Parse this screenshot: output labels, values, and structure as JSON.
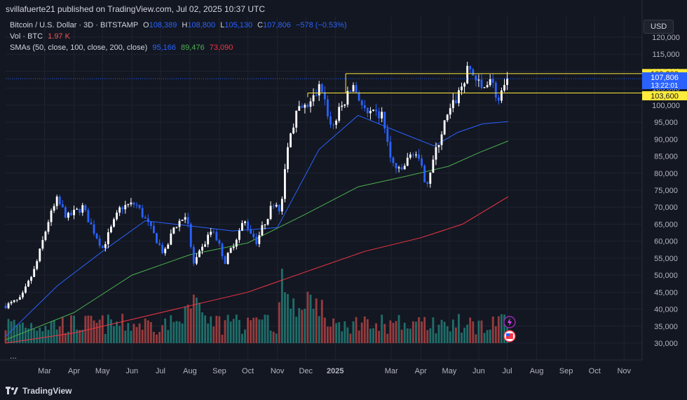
{
  "header": {
    "published": "svillafuerte21 published on TradingView.com, Jul 02, 2025 10:37 UTC"
  },
  "legend": {
    "symbol": "Bitcoin / U.S. Dollar · 3D · BITSTAMP",
    "o_label": "O",
    "o": "108,389",
    "h_label": "H",
    "h": "108,800",
    "l_label": "L",
    "l": "105,130",
    "c_label": "C",
    "c": "107,806",
    "change": "−578 (−0.53%)",
    "vol_label": "Vol · BTC",
    "vol": "1.97 K",
    "sma_label": "SMAs (50, close, 100, close, 200, close)",
    "sma1": "95,166",
    "sma2": "89,476",
    "sma3": "73,090"
  },
  "currency_button": "USD",
  "more_button": "...",
  "footer": {
    "brand": "TradingView"
  },
  "colors": {
    "up": "#ffffff",
    "down": "#2962ff",
    "vol_up": "#26a69a",
    "vol_down": "#ef5350",
    "sma50": "#2962ff",
    "sma100": "#4caf50",
    "sma200": "#f23645",
    "level": "#ffeb3b",
    "price": "#2962ff"
  },
  "chart_data": {
    "type": "candlestick",
    "title": "Bitcoin / U.S. Dollar · 3D · BITSTAMP",
    "ylim": [
      30000,
      125000
    ],
    "y_ticks": [
      30000,
      35000,
      40000,
      45000,
      50000,
      55000,
      60000,
      65000,
      70000,
      75000,
      80000,
      85000,
      90000,
      95000,
      100000,
      105000,
      110000,
      115000,
      120000
    ],
    "y_tick_labels": [
      "30,000",
      "35,000",
      "40,000",
      "45,000",
      "50,000",
      "55,000",
      "60,000",
      "65,000",
      "70,000",
      "75,000",
      "80,000",
      "85,000",
      "90,000",
      "95,000",
      "100,000",
      "105,000",
      "110,000",
      "115,000",
      "120,000"
    ],
    "x_ticks": [
      {
        "label": "Mar",
        "date": "2024-03-01"
      },
      {
        "label": "Apr",
        "date": "2024-04-01"
      },
      {
        "label": "May",
        "date": "2024-05-01"
      },
      {
        "label": "Jun",
        "date": "2024-06-01"
      },
      {
        "label": "Jul",
        "date": "2024-07-01"
      },
      {
        "label": "Aug",
        "date": "2024-08-01"
      },
      {
        "label": "Sep",
        "date": "2024-09-01"
      },
      {
        "label": "Oct",
        "date": "2024-10-01"
      },
      {
        "label": "Nov",
        "date": "2024-11-01"
      },
      {
        "label": "Dec",
        "date": "2024-12-01"
      },
      {
        "label": "2025",
        "date": "2025-01-01"
      },
      {
        "label": "Mar",
        "date": "2025-03-01"
      },
      {
        "label": "Apr",
        "date": "2025-04-01"
      },
      {
        "label": "May",
        "date": "2025-05-01"
      },
      {
        "label": "Jun",
        "date": "2025-06-01"
      },
      {
        "label": "Jul",
        "date": "2025-07-01"
      },
      {
        "label": "Aug",
        "date": "2025-08-01"
      },
      {
        "label": "Sep",
        "date": "2025-09-01"
      },
      {
        "label": "Oct",
        "date": "2025-10-01"
      },
      {
        "label": "Nov",
        "date": "2025-11-01"
      }
    ],
    "price_path": [
      [
        "2024-01-20",
        41000
      ],
      [
        "2024-02-05",
        43000
      ],
      [
        "2024-02-20",
        52000
      ],
      [
        "2024-03-05",
        66000
      ],
      [
        "2024-03-14",
        72000
      ],
      [
        "2024-03-25",
        67000
      ],
      [
        "2024-04-10",
        70000
      ],
      [
        "2024-04-20",
        64000
      ],
      [
        "2024-05-01",
        58000
      ],
      [
        "2024-05-20",
        70000
      ],
      [
        "2024-06-05",
        71000
      ],
      [
        "2024-06-20",
        64000
      ],
      [
        "2024-07-05",
        56000
      ],
      [
        "2024-07-15",
        64000
      ],
      [
        "2024-07-28",
        68000
      ],
      [
        "2024-08-05",
        53000
      ],
      [
        "2024-08-25",
        64000
      ],
      [
        "2024-09-07",
        54000
      ],
      [
        "2024-09-27",
        66000
      ],
      [
        "2024-10-10",
        60000
      ],
      [
        "2024-10-29",
        72000
      ],
      [
        "2024-11-05",
        69000
      ],
      [
        "2024-11-12",
        89000
      ],
      [
        "2024-11-22",
        98000
      ],
      [
        "2024-12-05",
        100000
      ],
      [
        "2024-12-17",
        106000
      ],
      [
        "2024-12-28",
        93000
      ],
      [
        "2025-01-05",
        98000
      ],
      [
        "2025-01-20",
        106000
      ],
      [
        "2025-02-03",
        97000
      ],
      [
        "2025-02-20",
        97000
      ],
      [
        "2025-02-28",
        84000
      ],
      [
        "2025-03-10",
        80000
      ],
      [
        "2025-03-25",
        87000
      ],
      [
        "2025-04-07",
        77000
      ],
      [
        "2025-04-25",
        94000
      ],
      [
        "2025-05-10",
        103000
      ],
      [
        "2025-05-22",
        111000
      ],
      [
        "2025-06-05",
        104000
      ],
      [
        "2025-06-12",
        109000
      ],
      [
        "2025-06-22",
        101000
      ],
      [
        "2025-07-02",
        107806
      ]
    ],
    "volume_bars": 120,
    "levels": [
      {
        "label": "109,300",
        "value": 109300
      },
      {
        "label": "103,600",
        "value": 103600
      }
    ],
    "current_price": {
      "label": "107,806",
      "value": 107806,
      "countdown": "13:22:01"
    },
    "series": [
      {
        "name": "SMA 50",
        "last": 95166,
        "path": [
          [
            "2024-01-20",
            32000
          ],
          [
            "2024-03-15",
            47000
          ],
          [
            "2024-05-01",
            57000
          ],
          [
            "2024-06-15",
            66000
          ],
          [
            "2024-08-01",
            64500
          ],
          [
            "2024-09-15",
            63000
          ],
          [
            "2024-11-01",
            64000
          ],
          [
            "2024-12-15",
            87000
          ],
          [
            "2025-01-25",
            97000
          ],
          [
            "2025-03-10",
            92000
          ],
          [
            "2025-04-15",
            88000
          ],
          [
            "2025-05-10",
            92000
          ],
          [
            "2025-06-05",
            94500
          ],
          [
            "2025-07-02",
            95166
          ]
        ]
      },
      {
        "name": "SMA 100",
        "last": 89476,
        "path": [
          [
            "2024-01-20",
            31000
          ],
          [
            "2024-04-01",
            39000
          ],
          [
            "2024-06-01",
            50000
          ],
          [
            "2024-08-01",
            56000
          ],
          [
            "2024-10-01",
            59500
          ],
          [
            "2024-12-01",
            68000
          ],
          [
            "2025-01-25",
            76000
          ],
          [
            "2025-03-15",
            79000
          ],
          [
            "2025-04-30",
            82000
          ],
          [
            "2025-06-01",
            86000
          ],
          [
            "2025-07-02",
            89476
          ]
        ]
      },
      {
        "name": "SMA 200",
        "last": 73090,
        "path": [
          [
            "2024-01-20",
            30000
          ],
          [
            "2024-04-01",
            33000
          ],
          [
            "2024-06-01",
            37000
          ],
          [
            "2024-08-01",
            41000
          ],
          [
            "2024-10-01",
            45000
          ],
          [
            "2024-12-01",
            51000
          ],
          [
            "2025-02-01",
            57000
          ],
          [
            "2025-04-01",
            61000
          ],
          [
            "2025-05-15",
            65000
          ],
          [
            "2025-07-02",
            73090
          ]
        ]
      }
    ]
  }
}
